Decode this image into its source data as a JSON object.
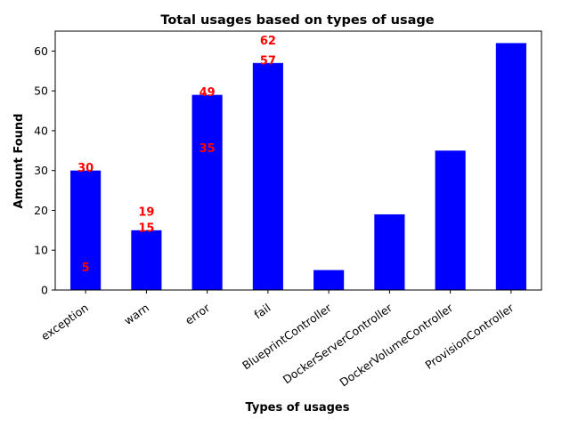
{
  "chart_data": {
    "type": "bar",
    "title": "Total usages based on types of usage",
    "xlabel": "Types of usages",
    "ylabel": "Amount Found",
    "categories": [
      "exception",
      "warn",
      "error",
      "fail",
      "BlueprintController",
      "DockerServerController",
      "DockerVolumeController",
      "ProvisionController"
    ],
    "values": [
      30,
      15,
      49,
      57,
      5,
      19,
      35,
      62
    ],
    "ylim": [
      0,
      65
    ],
    "yticks": [
      0,
      10,
      20,
      30,
      40,
      50,
      60
    ],
    "bar_color": "#0000ff",
    "label_color": "#ff0000",
    "grid": false,
    "annotations": [
      {
        "text": "30",
        "category": "exception",
        "y": 30
      },
      {
        "text": "5",
        "category": "exception",
        "y": 5
      },
      {
        "text": "19",
        "category": "warn",
        "y": 19
      },
      {
        "text": "15",
        "category": "warn",
        "y": 15
      },
      {
        "text": "49",
        "category": "error",
        "y": 49
      },
      {
        "text": "35",
        "category": "error",
        "y": 35
      },
      {
        "text": "62",
        "category": "fail",
        "y": 62
      },
      {
        "text": "57",
        "category": "fail",
        "y": 57
      }
    ]
  }
}
